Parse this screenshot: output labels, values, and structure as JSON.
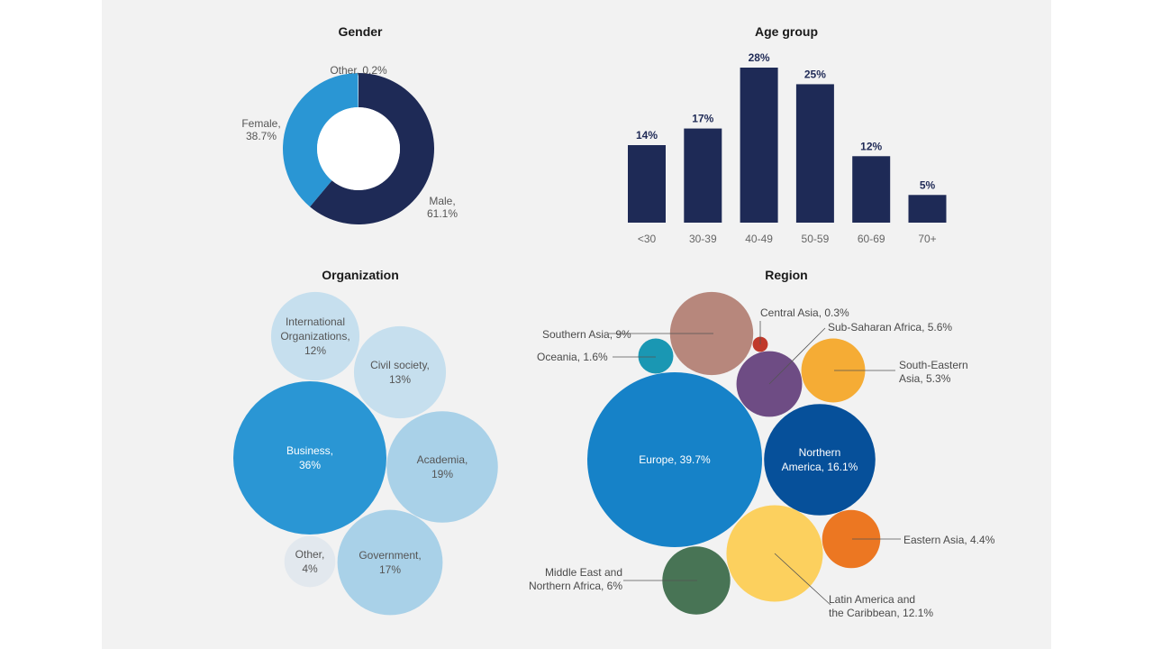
{
  "colors": {
    "navy": "#1e2a56",
    "blue": "#2a96d4",
    "light_blue": "#a9d1e8",
    "pale_blue": "#c6dfee",
    "pale_other": "#e2e8ee"
  },
  "chart_data": [
    {
      "type": "pie",
      "title": "Gender",
      "donut": true,
      "slices": [
        {
          "label": "Male,",
          "value_label": "61.1%",
          "value": 61.1,
          "color": "#1e2a56"
        },
        {
          "label": "Female,",
          "value_label": "38.7%",
          "value": 38.7,
          "color": "#2a96d4"
        },
        {
          "label": "Other, 0.2%",
          "value_label": "",
          "value": 0.2,
          "color": "#a9d1e8"
        }
      ]
    },
    {
      "type": "bar",
      "title": "Age group",
      "categories": [
        "<30",
        "30-39",
        "40-49",
        "50-59",
        "60-69",
        "70+"
      ],
      "values": [
        14,
        17,
        28,
        25,
        12,
        5
      ],
      "value_labels": [
        "14%",
        "17%",
        "28%",
        "25%",
        "12%",
        "5%"
      ],
      "ylim": [
        0,
        28
      ],
      "color": "#1e2a56"
    },
    {
      "type": "bubble",
      "title": "Organization",
      "items": [
        {
          "lines": [
            "International",
            "Organizations,",
            "12%"
          ],
          "value": 12,
          "color": "#c6dfee",
          "text_color": "#555555"
        },
        {
          "lines": [
            "Civil society,",
            "13%"
          ],
          "value": 13,
          "color": "#c6dfee",
          "text_color": "#555555"
        },
        {
          "lines": [
            "Business,",
            "36%"
          ],
          "value": 36,
          "color": "#2a96d4",
          "text_color": "#ffffff"
        },
        {
          "lines": [
            "Academia,",
            "19%"
          ],
          "value": 19,
          "color": "#a9d1e8",
          "text_color": "#555555"
        },
        {
          "lines": [
            "Other,",
            "4%"
          ],
          "value": 4,
          "color": "#e2e8ee",
          "text_color": "#555555"
        },
        {
          "lines": [
            "Government,",
            "17%"
          ],
          "value": 17,
          "color": "#a9d1e8",
          "text_color": "#555555"
        }
      ]
    },
    {
      "type": "bubble",
      "title": "Region",
      "items": [
        {
          "lines": [
            "Southern Asia, 9%"
          ],
          "value": 9,
          "color": "#b7877c"
        },
        {
          "lines": [
            "Central Asia, 0.3%"
          ],
          "value": 0.3,
          "color": "#c0392b"
        },
        {
          "lines": [
            "Sub-Saharan Africa, 5.6%"
          ],
          "value": 5.6,
          "color": "#6e4c84"
        },
        {
          "lines": [
            "Oceania, 1.6%"
          ],
          "value": 1.6,
          "color": "#1a97b3"
        },
        {
          "lines": [
            "South-Eastern",
            "Asia, 5.3%"
          ],
          "value": 5.3,
          "color": "#f5ac35"
        },
        {
          "lines": [
            "Europe, 39.7%"
          ],
          "value": 39.7,
          "color": "#1682c8"
        },
        {
          "lines": [
            "Northern",
            "America, 16.1%"
          ],
          "value": 16.1,
          "color": "#06509a"
        },
        {
          "lines": [
            "Eastern Asia, 4.4%"
          ],
          "value": 4.4,
          "color": "#ec7722"
        },
        {
          "lines": [
            "Latin America and",
            "the Caribbean, 12.1%"
          ],
          "value": 12.1,
          "color": "#fcd05e"
        },
        {
          "lines": [
            "Middle East and",
            "Northern Africa, 6%"
          ],
          "value": 6,
          "color": "#487455"
        }
      ]
    }
  ]
}
